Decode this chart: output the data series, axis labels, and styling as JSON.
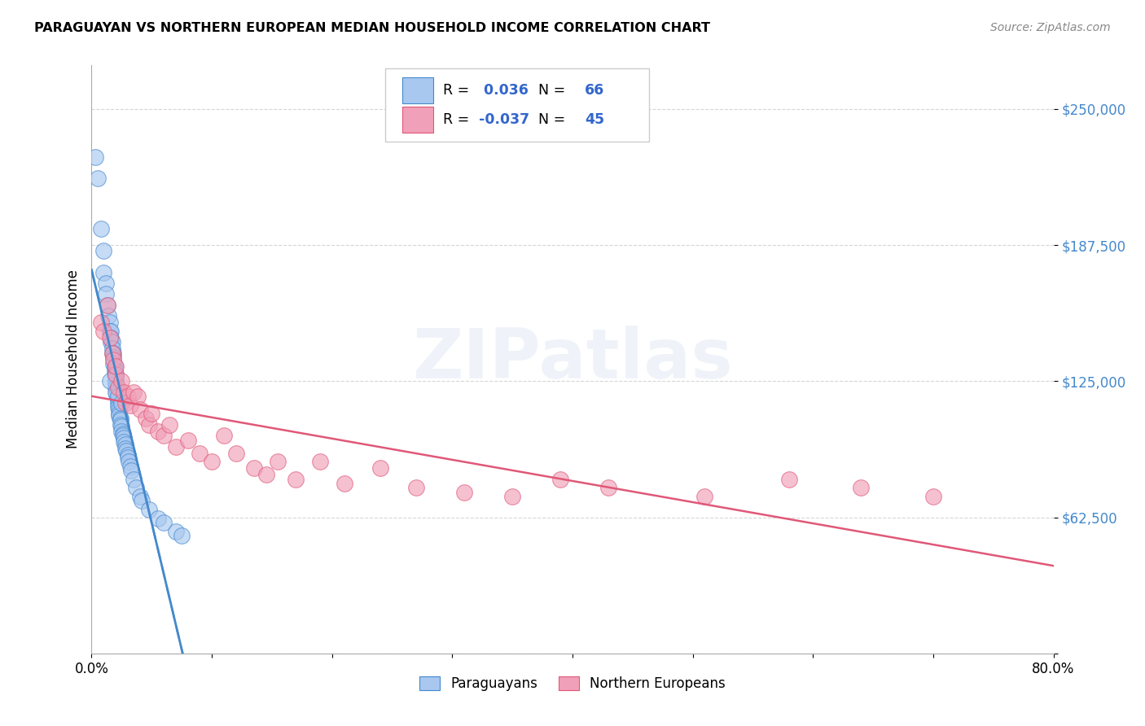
{
  "title": "PARAGUAYAN VS NORTHERN EUROPEAN MEDIAN HOUSEHOLD INCOME CORRELATION CHART",
  "source": "Source: ZipAtlas.com",
  "ylabel": "Median Household Income",
  "xlim": [
    0,
    0.8
  ],
  "ylim": [
    0,
    270000
  ],
  "yticks": [
    0,
    62500,
    125000,
    187500,
    250000
  ],
  "ytick_labels": [
    "",
    "$62,500",
    "$125,000",
    "$187,500",
    "$250,000"
  ],
  "xtick_positions": [
    0.0,
    0.1,
    0.2,
    0.3,
    0.4,
    0.5,
    0.6,
    0.7,
    0.8
  ],
  "background_color": "#ffffff",
  "grid_color": "#cccccc",
  "watermark": "ZIPatlas",
  "blue_color": "#a8c8f0",
  "pink_color": "#f0a0b8",
  "blue_line_color": "#4488cc",
  "pink_line_color": "#e05878",
  "legend_blue_R": "0.036",
  "legend_blue_N": "66",
  "legend_pink_R": "-0.037",
  "legend_pink_N": "45",
  "paraguayans_x": [
    0.003,
    0.005,
    0.008,
    0.01,
    0.01,
    0.012,
    0.012,
    0.013,
    0.014,
    0.015,
    0.015,
    0.016,
    0.016,
    0.016,
    0.017,
    0.017,
    0.017,
    0.018,
    0.018,
    0.018,
    0.019,
    0.019,
    0.019,
    0.02,
    0.02,
    0.02,
    0.02,
    0.021,
    0.021,
    0.022,
    0.022,
    0.022,
    0.022,
    0.023,
    0.023,
    0.023,
    0.024,
    0.024,
    0.024,
    0.025,
    0.025,
    0.026,
    0.026,
    0.027,
    0.027,
    0.028,
    0.028,
    0.029,
    0.03,
    0.03,
    0.031,
    0.032,
    0.033,
    0.035,
    0.037,
    0.04,
    0.042,
    0.048,
    0.055,
    0.06,
    0.07,
    0.075,
    0.015,
    0.02,
    0.022,
    0.025
  ],
  "paraguayans_y": [
    228000,
    218000,
    195000,
    185000,
    175000,
    170000,
    165000,
    160000,
    155000,
    152000,
    148000,
    148000,
    145000,
    143000,
    143000,
    140000,
    138000,
    138000,
    136000,
    133000,
    132000,
    130000,
    128000,
    128000,
    126000,
    124000,
    122000,
    121000,
    119000,
    118000,
    116000,
    115000,
    113000,
    112000,
    110000,
    109000,
    108000,
    107000,
    105000,
    104000,
    102000,
    101000,
    100000,
    99000,
    97000,
    96000,
    94000,
    93000,
    91000,
    90000,
    88000,
    86000,
    84000,
    80000,
    76000,
    72000,
    70000,
    66000,
    62000,
    60000,
    56000,
    54000,
    125000,
    120000,
    118000,
    115000
  ],
  "northern_europeans_x": [
    0.008,
    0.01,
    0.013,
    0.015,
    0.017,
    0.018,
    0.02,
    0.02,
    0.022,
    0.025,
    0.027,
    0.028,
    0.03,
    0.032,
    0.035,
    0.038,
    0.04,
    0.045,
    0.048,
    0.05,
    0.055,
    0.06,
    0.065,
    0.07,
    0.08,
    0.09,
    0.1,
    0.11,
    0.12,
    0.135,
    0.145,
    0.155,
    0.17,
    0.19,
    0.21,
    0.24,
    0.27,
    0.31,
    0.35,
    0.39,
    0.43,
    0.51,
    0.58,
    0.64,
    0.7
  ],
  "northern_europeans_y": [
    152000,
    148000,
    160000,
    145000,
    138000,
    135000,
    128000,
    132000,
    122000,
    125000,
    120000,
    115000,
    118000,
    114000,
    120000,
    118000,
    112000,
    108000,
    105000,
    110000,
    102000,
    100000,
    105000,
    95000,
    98000,
    92000,
    88000,
    100000,
    92000,
    85000,
    82000,
    88000,
    80000,
    88000,
    78000,
    85000,
    76000,
    74000,
    72000,
    80000,
    76000,
    72000,
    80000,
    76000,
    72000
  ]
}
